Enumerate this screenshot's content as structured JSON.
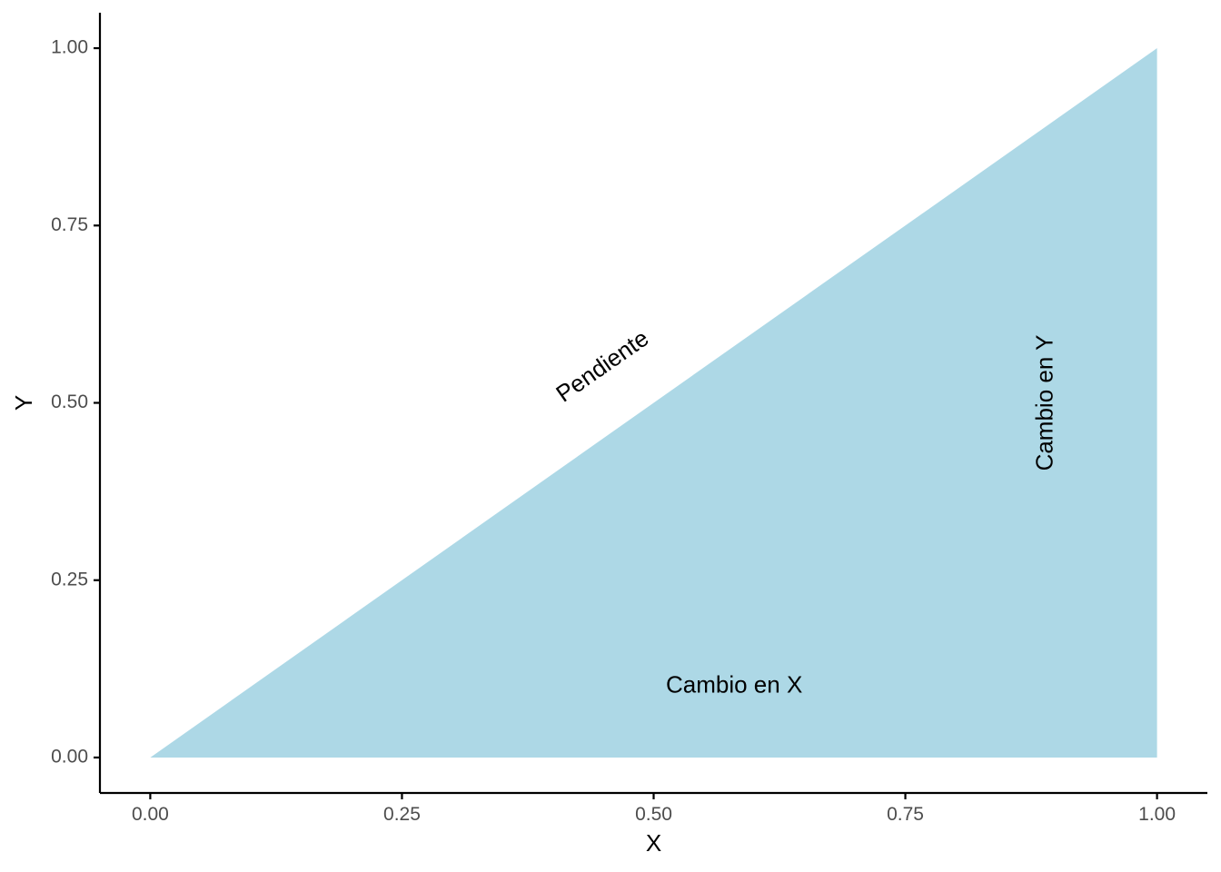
{
  "chart_data": {
    "type": "area",
    "title": "",
    "xlabel": "X",
    "ylabel": "Y",
    "xlim": [
      -0.05,
      1.05
    ],
    "ylim": [
      -0.05,
      1.05
    ],
    "x_ticks": [
      0,
      0.25,
      0.5,
      0.75,
      1
    ],
    "x_tick_labels": [
      "0.00",
      "0.25",
      "0.50",
      "0.75",
      "1.00"
    ],
    "y_ticks": [
      0,
      0.25,
      0.5,
      0.75,
      1
    ],
    "y_tick_labels": [
      "0.00",
      "0.25",
      "0.50",
      "0.75",
      "1.00"
    ],
    "grid": false,
    "legend": "none",
    "series": [
      {
        "fill_color": "#ADD8E6",
        "points": [
          {
            "x": 0,
            "y": 0
          },
          {
            "x": 1,
            "y": 1
          },
          {
            "x": 1,
            "y": 0
          }
        ]
      }
    ],
    "annotations": [
      {
        "name": "pendiente",
        "text": "Pendiente",
        "x": 0.45,
        "y": 0.55,
        "angle_deg": -35
      },
      {
        "name": "cambio-en-x",
        "text": "Cambio en X",
        "x": 0.58,
        "y": 0.1,
        "angle_deg": 0
      },
      {
        "name": "cambio-en-y",
        "text": "Cambio en Y",
        "x": 0.89,
        "y": 0.5,
        "angle_deg": -90
      }
    ]
  }
}
